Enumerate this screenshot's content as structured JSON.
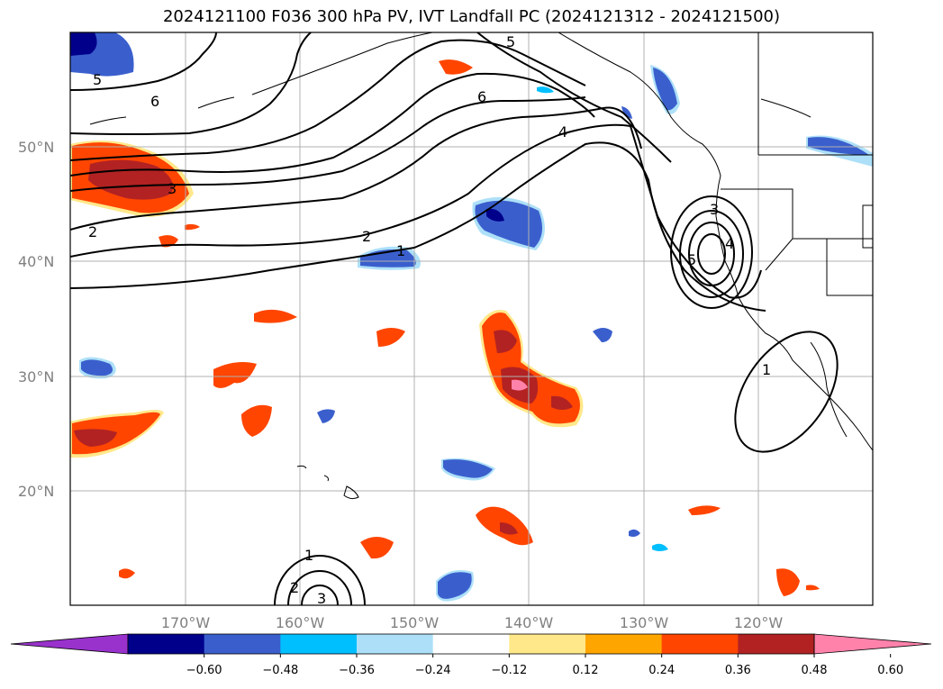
{
  "title": "2024121100 F036 300 hPa PV, IVT Landfall PC (2024121312 - 2024121500)",
  "map": {
    "lat_labels": [
      "50°N",
      "40°N",
      "30°N",
      "20°N"
    ],
    "lon_labels": [
      "170°W",
      "160°W",
      "150°W",
      "140°W",
      "130°W",
      "120°W"
    ],
    "lon_range": [
      -180,
      -110
    ],
    "lat_range": [
      10,
      60
    ],
    "grid": true,
    "contour_labels": [
      "5",
      "6",
      "5",
      "6",
      "4",
      "3",
      "2",
      "2",
      "1",
      "3",
      "4",
      "5",
      "1",
      "1",
      "2",
      "3"
    ]
  },
  "colorbar": {
    "ticks": [
      "−0.60",
      "−0.48",
      "−0.36",
      "−0.24",
      "−0.12",
      "0.12",
      "0.24",
      "0.36",
      "0.48",
      "0.60"
    ],
    "colors": [
      "#9932CC",
      "#00008B",
      "#3A5FCD",
      "#00BFFF",
      "#ADE0F8",
      "#FFFFFF",
      "#FFE88A",
      "#FFA500",
      "#FF4500",
      "#B22222",
      "#FF82AB"
    ],
    "extend": "both"
  }
}
